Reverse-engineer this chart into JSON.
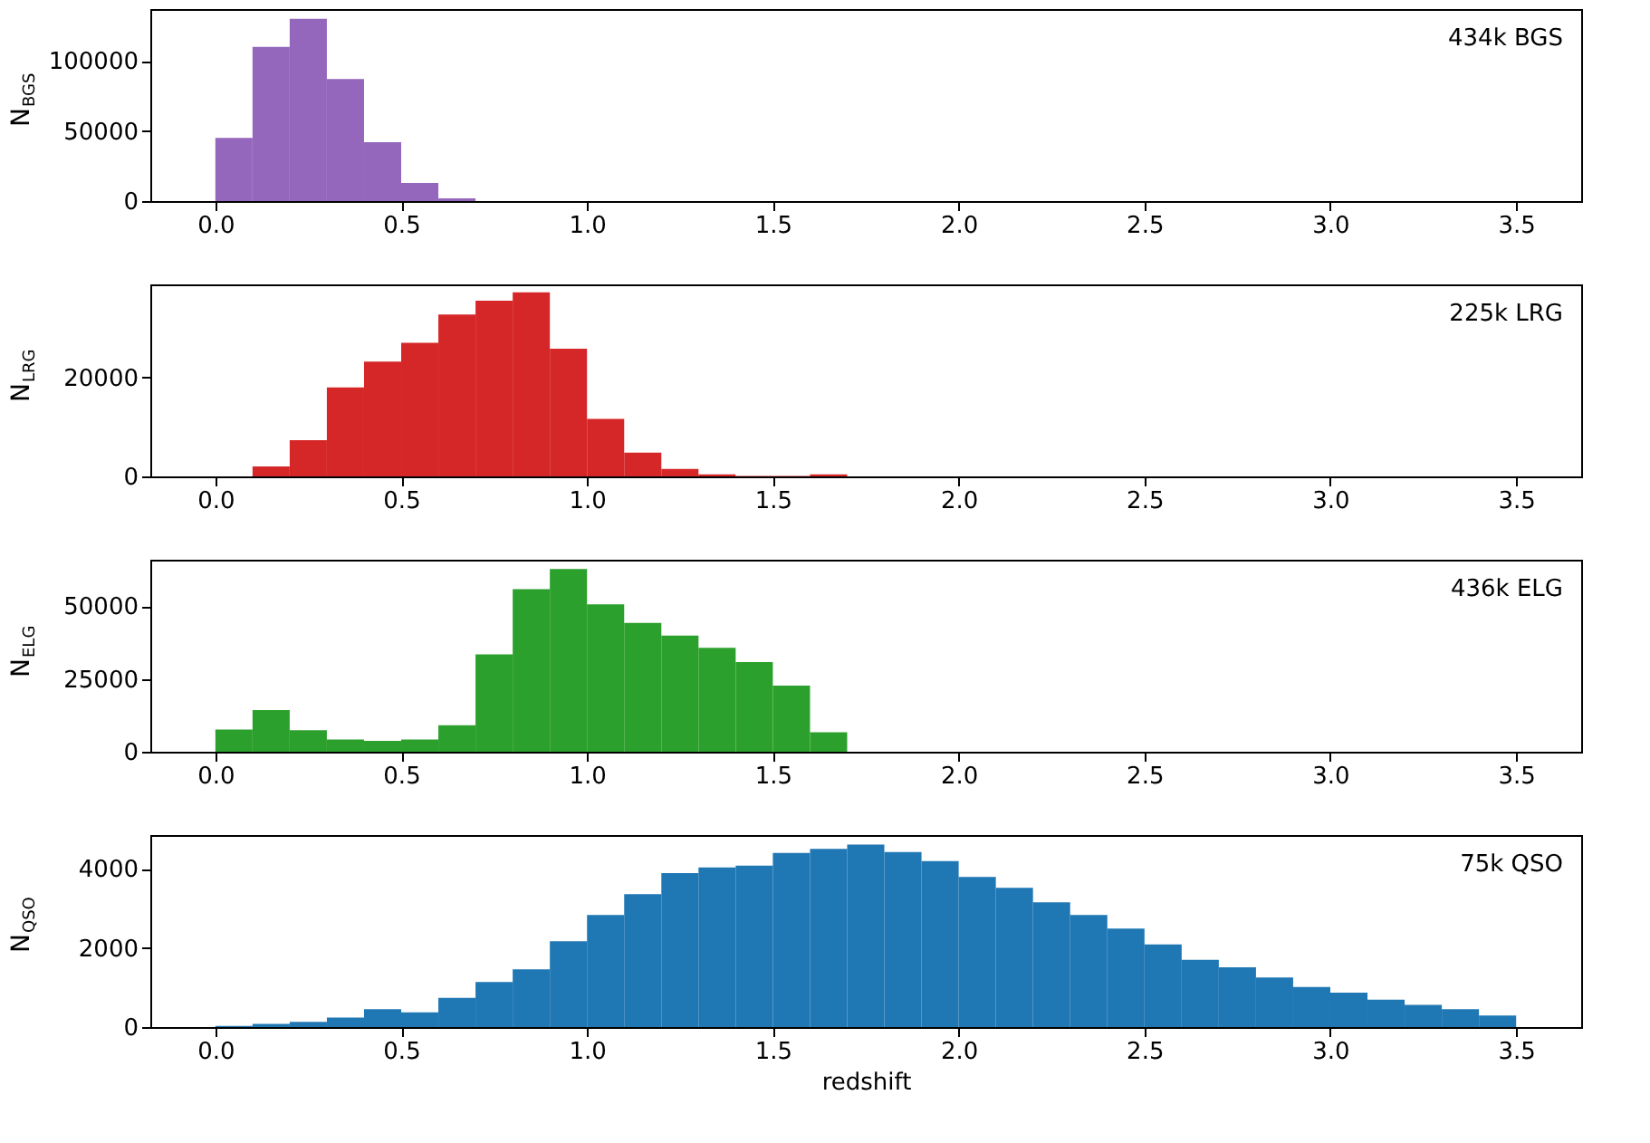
{
  "chart_data": [
    {
      "type": "histogram",
      "color": "#9467bd",
      "ylabel": "N$_{BGS}$",
      "annotations": [
        "434k BGS"
      ],
      "bins": [
        0.0,
        0.1,
        0.2,
        0.3,
        0.4,
        0.5,
        0.6,
        0.7
      ],
      "values": [
        45000,
        110000,
        130000,
        87000,
        42000,
        13000,
        2000
      ],
      "xlim": [
        -0.175,
        3.675
      ],
      "ylim": [
        0,
        137000
      ],
      "yticks": [
        0,
        50000,
        100000
      ],
      "xticks": [
        {
          "value": 0,
          "label": "0.0"
        },
        {
          "value": 0.5,
          "label": "0.5"
        },
        {
          "value": 1,
          "label": "1.0"
        },
        {
          "value": 1.5,
          "label": "1.5"
        },
        {
          "value": 2,
          "label": "2.0"
        },
        {
          "value": 2.5,
          "label": "2.5"
        },
        {
          "value": 3,
          "label": "3.0"
        },
        {
          "value": 3.5,
          "label": "3.5"
        }
      ],
      "grid": false
    },
    {
      "type": "histogram",
      "color": "#d62728",
      "ylabel": "N$_{LRG}$",
      "annotations": [
        "225k LRG"
      ],
      "bins": [
        0.1,
        0.2,
        0.3,
        0.4,
        0.5,
        0.6,
        0.7,
        0.8,
        0.9,
        1.0,
        1.1,
        1.2,
        1.3,
        1.4,
        1.5,
        1.6,
        1.7
      ],
      "values": [
        2000,
        7300,
        18000,
        23200,
        27000,
        32700,
        35500,
        37200,
        25800,
        11600,
        4800,
        1500,
        400,
        100,
        100,
        400
      ],
      "xlim": [
        -0.175,
        3.675
      ],
      "ylim": [
        0,
        38800
      ],
      "yticks": [
        0,
        20000
      ],
      "xticks": [
        {
          "value": 0,
          "label": "0.0"
        },
        {
          "value": 0.5,
          "label": "0.5"
        },
        {
          "value": 1,
          "label": "1.0"
        },
        {
          "value": 1.5,
          "label": "1.5"
        },
        {
          "value": 2,
          "label": "2.0"
        },
        {
          "value": 2.5,
          "label": "2.5"
        },
        {
          "value": 3,
          "label": "3.0"
        },
        {
          "value": 3.5,
          "label": "3.5"
        }
      ],
      "grid": false
    },
    {
      "type": "histogram",
      "color": "#2ca02c",
      "ylabel": "N$_{ELG}$",
      "annotations": [
        "436k ELG"
      ],
      "bins": [
        0.0,
        0.1,
        0.2,
        0.3,
        0.4,
        0.5,
        0.6,
        0.7,
        0.8,
        0.9,
        1.0,
        1.1,
        1.2,
        1.3,
        1.4,
        1.5,
        1.6,
        1.7
      ],
      "values": [
        7600,
        14300,
        7400,
        4200,
        3700,
        4200,
        9100,
        33500,
        55900,
        62800,
        50700,
        44300,
        39900,
        35700,
        30800,
        22700,
        6700
      ],
      "xlim": [
        -0.175,
        3.675
      ],
      "ylim": [
        0,
        66000
      ],
      "yticks": [
        0,
        25000,
        50000
      ],
      "xticks": [
        {
          "value": 0,
          "label": "0.0"
        },
        {
          "value": 0.5,
          "label": "0.5"
        },
        {
          "value": 1,
          "label": "1.0"
        },
        {
          "value": 1.5,
          "label": "1.5"
        },
        {
          "value": 2,
          "label": "2.0"
        },
        {
          "value": 2.5,
          "label": "2.5"
        },
        {
          "value": 3,
          "label": "3.0"
        },
        {
          "value": 3.5,
          "label": "3.5"
        }
      ],
      "grid": false
    },
    {
      "type": "histogram",
      "color": "#1f77b4",
      "ylabel": "N$_{QSO}$",
      "xlabel": "redshift",
      "annotations": [
        "75k QSO"
      ],
      "bins": [
        0.0,
        0.1,
        0.2,
        0.3,
        0.4,
        0.5,
        0.6,
        0.7,
        0.8,
        0.9,
        1.0,
        1.1,
        1.2,
        1.3,
        1.4,
        1.5,
        1.6,
        1.7,
        1.8,
        1.9,
        2.0,
        2.1,
        2.2,
        2.3,
        2.4,
        2.5,
        2.6,
        2.7,
        2.8,
        2.9,
        3.0,
        3.1,
        3.2,
        3.3,
        3.4,
        3.5
      ],
      "values": [
        30,
        80,
        130,
        240,
        450,
        370,
        740,
        1140,
        1460,
        2170,
        2830,
        3360,
        3890,
        4030,
        4080,
        4400,
        4500,
        4610,
        4420,
        4190,
        3790,
        3520,
        3150,
        2830,
        2490,
        2090,
        1700,
        1510,
        1250,
        1010,
        870,
        690,
        560,
        450,
        290
      ],
      "xlim": [
        -0.175,
        3.675
      ],
      "ylim": [
        0,
        4850
      ],
      "yticks": [
        0,
        2000,
        4000
      ],
      "xticks": [
        {
          "value": 0,
          "label": "0.0"
        },
        {
          "value": 0.5,
          "label": "0.5"
        },
        {
          "value": 1,
          "label": "1.0"
        },
        {
          "value": 1.5,
          "label": "1.5"
        },
        {
          "value": 2,
          "label": "2.0"
        },
        {
          "value": 2.5,
          "label": "2.5"
        },
        {
          "value": 3,
          "label": "3.0"
        },
        {
          "value": 3.5,
          "label": "3.5"
        }
      ],
      "grid": false
    }
  ]
}
